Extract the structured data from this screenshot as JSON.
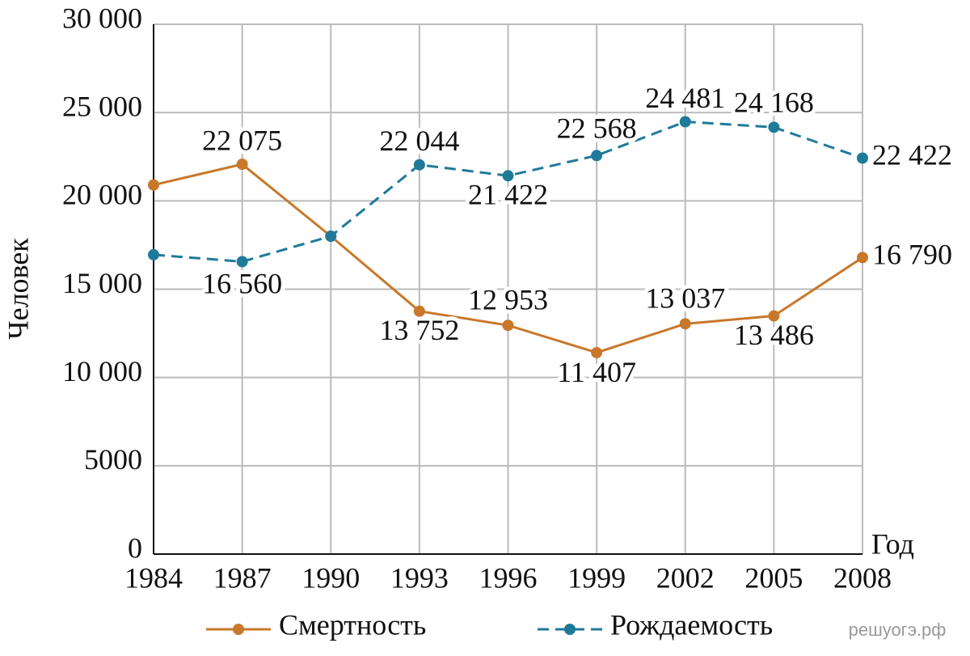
{
  "chart_data": {
    "type": "line",
    "y_label": "Человек",
    "x_label": "Год",
    "x": [
      1984,
      1987,
      1990,
      1993,
      1996,
      1999,
      2002,
      2005,
      2008
    ],
    "xlim": [
      1984,
      2008
    ],
    "xticks": [
      1984,
      1987,
      1990,
      1993,
      1996,
      1999,
      2002,
      2005,
      2008
    ],
    "ylim": [
      0,
      30000
    ],
    "yticks": [
      0,
      5000,
      {
        "value": 10000,
        "label": "10 000"
      },
      {
        "value": 15000,
        "label": "15 000"
      },
      {
        "value": 20000,
        "label": "20 000"
      },
      {
        "value": 25000,
        "label": "25 000"
      },
      {
        "value": 30000,
        "label": "30 000"
      }
    ],
    "grid": true,
    "series": [
      {
        "name": "Смертность",
        "color": "#c8782a",
        "line_style": "solid",
        "values": [
          20900,
          22075,
          18000,
          13752,
          12953,
          11407,
          13037,
          13486,
          16790
        ],
        "value_labels": [
          null,
          "22 075",
          null,
          "13 752",
          "12 953",
          "11 407",
          "13 037",
          "13 486",
          "16 790"
        ]
      },
      {
        "name": "Рождаемость",
        "color": "#1f7a9a",
        "line_style": "dashed",
        "values": [
          16950,
          16560,
          18000,
          22044,
          21422,
          22568,
          24481,
          24168,
          22422
        ],
        "value_labels": [
          null,
          "16 560",
          null,
          "22 044",
          "21 422",
          "22 568",
          "24 481",
          "24 168",
          "22 422"
        ]
      }
    ],
    "watermark": "решуогэ.рф"
  }
}
